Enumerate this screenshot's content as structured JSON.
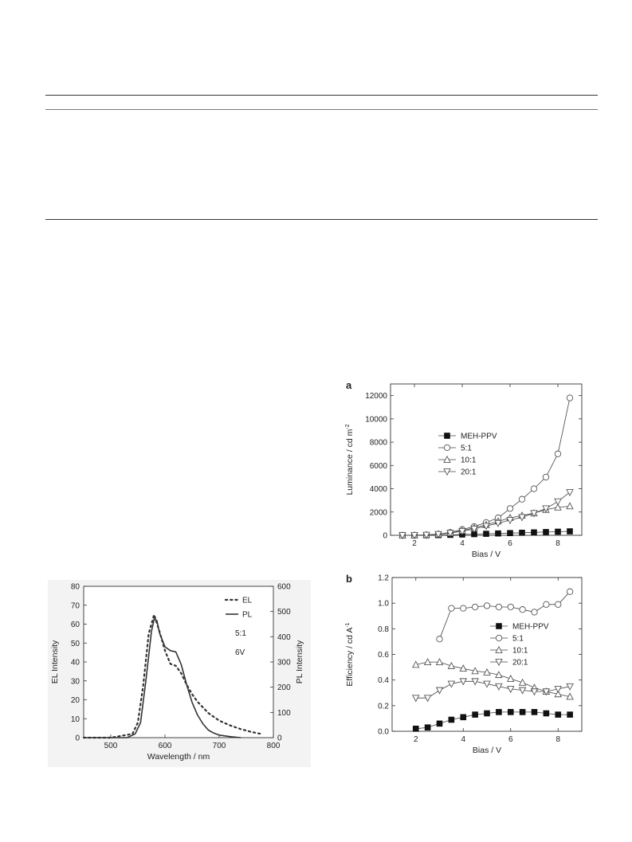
{
  "chart_data": [
    {
      "id": "spectrum",
      "type": "line",
      "xlabel": "Wavelength / nm",
      "ylabel": "EL Intensity",
      "y2label": "PL Intensity",
      "xlim": [
        450,
        800
      ],
      "ylim": [
        0,
        80
      ],
      "y2lim": [
        0,
        600
      ],
      "xticks": [
        500,
        600,
        700,
        800
      ],
      "yticks": [
        0,
        10,
        20,
        30,
        40,
        50,
        60,
        70,
        80
      ],
      "y2ticks": [
        0,
        100,
        200,
        300,
        400,
        500,
        600
      ],
      "legend_notes": [
        "5:1",
        "6V"
      ],
      "series": [
        {
          "name": "EL",
          "style": "dotted",
          "axis": "left",
          "x": [
            450,
            500,
            540,
            550,
            560,
            570,
            580,
            590,
            600,
            610,
            620,
            630,
            640,
            650,
            660,
            670,
            680,
            700,
            720,
            740,
            760,
            780
          ],
          "y": [
            0,
            0,
            2,
            8,
            28,
            55,
            65,
            56,
            46,
            39,
            38,
            34,
            28,
            23,
            19,
            16,
            13,
            9,
            6.5,
            4.5,
            3,
            1.8
          ]
        },
        {
          "name": "PL",
          "style": "solid",
          "axis": "right",
          "x": [
            450,
            530,
            545,
            555,
            565,
            575,
            580,
            585,
            590,
            600,
            610,
            620,
            625,
            630,
            640,
            650,
            660,
            670,
            680,
            690,
            700,
            720,
            740
          ],
          "y": [
            0,
            0,
            15,
            60,
            230,
            420,
            470,
            465,
            415,
            360,
            345,
            340,
            315,
            290,
            210,
            140,
            90,
            55,
            30,
            18,
            10,
            4,
            0
          ]
        }
      ]
    },
    {
      "id": "luminance",
      "type": "line",
      "panel_label": "a",
      "xlabel": "Bias / V",
      "ylabel": "Luminance / cd m",
      "ylabel_sup": "-2",
      "xlim": [
        1,
        9
      ],
      "ylim": [
        0,
        13000
      ],
      "xticks": [
        2,
        4,
        6,
        8
      ],
      "yticks": [
        0,
        2000,
        4000,
        6000,
        8000,
        10000,
        12000
      ],
      "legend_position": "center-left",
      "series": [
        {
          "name": "MEH-PPV",
          "marker": "square-filled",
          "x": [
            1.5,
            2,
            2.5,
            3,
            3.5,
            4,
            4.5,
            5,
            5.5,
            6,
            6.5,
            7,
            7.5,
            8,
            8.5
          ],
          "y": [
            0,
            0,
            5,
            20,
            40,
            70,
            100,
            130,
            160,
            190,
            220,
            250,
            280,
            310,
            340
          ]
        },
        {
          "name": "5:1",
          "marker": "circle-open",
          "x": [
            1.5,
            2,
            2.5,
            3,
            3.5,
            4,
            4.5,
            5,
            5.5,
            6,
            6.5,
            7,
            7.5,
            8,
            8.5
          ],
          "y": [
            0,
            10,
            30,
            100,
            250,
            500,
            750,
            1100,
            1500,
            2300,
            3100,
            4000,
            5000,
            7000,
            11800
          ]
        },
        {
          "name": "10:1",
          "marker": "triangle-up-open",
          "x": [
            1.5,
            2,
            2.5,
            3,
            3.5,
            4,
            4.5,
            5,
            5.5,
            6,
            6.5,
            7,
            7.5,
            8,
            8.5
          ],
          "y": [
            0,
            10,
            30,
            100,
            200,
            400,
            650,
            900,
            1200,
            1500,
            1700,
            1900,
            2200,
            2400,
            2500
          ]
        },
        {
          "name": "20:1",
          "marker": "triangle-down-open",
          "x": [
            1.5,
            2,
            2.5,
            3,
            3.5,
            4,
            4.5,
            5,
            5.5,
            6,
            6.5,
            7,
            7.5,
            8,
            8.5
          ],
          "y": [
            0,
            10,
            30,
            100,
            200,
            350,
            550,
            800,
            1050,
            1300,
            1550,
            1900,
            2300,
            2900,
            3700
          ]
        }
      ]
    },
    {
      "id": "efficiency",
      "type": "line",
      "panel_label": "b",
      "xlabel": "Bias / V",
      "ylabel": "Efficiency / cd A",
      "ylabel_sup": "-1",
      "xlim": [
        1,
        9
      ],
      "ylim": [
        0.0,
        1.2
      ],
      "xticks": [
        2,
        4,
        6,
        8
      ],
      "yticks": [
        0.0,
        0.2,
        0.4,
        0.6,
        0.8,
        1.0,
        1.2
      ],
      "legend_position": "center-right",
      "series": [
        {
          "name": "MEH-PPV",
          "marker": "square-filled",
          "x": [
            2,
            2.5,
            3,
            3.5,
            4,
            4.5,
            5,
            5.5,
            6,
            6.5,
            7,
            7.5,
            8,
            8.5
          ],
          "y": [
            0.02,
            0.03,
            0.06,
            0.09,
            0.11,
            0.13,
            0.14,
            0.15,
            0.15,
            0.15,
            0.15,
            0.14,
            0.13,
            0.13
          ]
        },
        {
          "name": "5:1",
          "marker": "circle-open",
          "x": [
            3,
            3.5,
            4,
            4.5,
            5,
            5.5,
            6,
            6.5,
            7,
            7.5,
            8,
            8.5
          ],
          "y": [
            0.72,
            0.96,
            0.96,
            0.97,
            0.98,
            0.97,
            0.97,
            0.95,
            0.93,
            0.99,
            0.99,
            1.09
          ]
        },
        {
          "name": "10:1",
          "marker": "triangle-up-open",
          "x": [
            2,
            2.5,
            3,
            3.5,
            4,
            4.5,
            5,
            5.5,
            6,
            6.5,
            7,
            7.5,
            8,
            8.5
          ],
          "y": [
            0.52,
            0.54,
            0.54,
            0.51,
            0.49,
            0.47,
            0.46,
            0.44,
            0.41,
            0.38,
            0.34,
            0.31,
            0.29,
            0.27
          ]
        },
        {
          "name": "20:1",
          "marker": "triangle-down-open",
          "x": [
            2,
            2.5,
            3,
            3.5,
            4,
            4.5,
            5,
            5.5,
            6,
            6.5,
            7,
            7.5,
            8,
            8.5
          ],
          "y": [
            0.26,
            0.26,
            0.32,
            0.37,
            0.39,
            0.39,
            0.37,
            0.35,
            0.33,
            0.32,
            0.31,
            0.31,
            0.33,
            0.35
          ]
        }
      ]
    }
  ]
}
